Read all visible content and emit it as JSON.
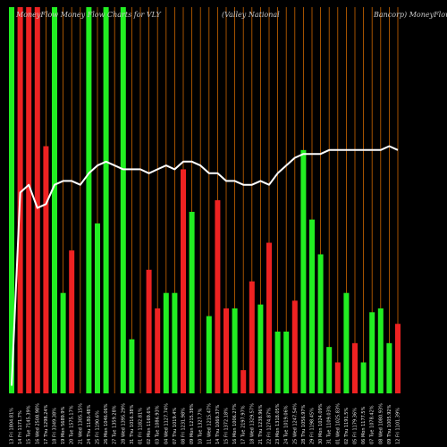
{
  "header": {
    "title_left": "MoneyFlow  Money Flow  Charts for VLY",
    "title_mid": "(Valley National",
    "title_right": "Bancorp) MoneyFlow"
  },
  "chart_data": {
    "type": "bar",
    "title": "MoneyFlow Money Flow Charts for VLY (Valley National Bancorp) MoneyFlow",
    "xlabel": "",
    "ylabel": "",
    "ylim": [
      0,
      100
    ],
    "grid": true,
    "grid_color": "#cc6600",
    "up_color": "#22ee22",
    "down_color": "#ee2222",
    "line_color": "#ffffff",
    "categories": [
      "13 Fri 1804.81%",
      "14 Fri 1171.7%",
      "15 Tue 7145.39%",
      "16 Wed 2508.98%",
      "17 Thu 1298.24%",
      "18 Fri 3349.38%",
      "19 Mon 5689.9%",
      "20 Tue 1575.17%",
      "21 Wed 1305.15%",
      "24 Thu 1180.48%",
      "25 Fri 1190.6%",
      "26 Mon 1046.06%",
      "27 Tue 1359.28%",
      "28 Wed 1395.29%",
      "31 Thu 1016.38%",
      "01 Fri 1182.81%",
      "02 Mon 1169.6%",
      "03 Tue 1086.93%",
      "04 Wed 1127.74%",
      "07 Thu 1019.4%",
      "08 Fri 1231.98%",
      "09 Mon 1215.38%",
      "10 Tue 1327.7%",
      "11 Wed 1215.47%",
      "14 Thu 1069.37%",
      "15 Fri 1372.18%",
      "16 Mon 1006.27%",
      "17 Tue 2197.97%",
      "18 Wed 1329.57%",
      "21 Thu 1238.96%",
      "22 Fri 1274.87%",
      "23 Mon 1318.05%",
      "24 Tue 1019.06%",
      "25 Wed 1247.54%",
      "28 Thu 1056.97%",
      "29 Fri 1198.45%",
      "30 Mon 1024.09%",
      "31 Tue 1109.03%",
      "01 Wed 1025.83%",
      "02 Thu 1191.5%",
      "05 Fri 1179.36%",
      "06 Mon 1177.5%",
      "07 Tue 1078.42%",
      "08 Wed 1080.93%",
      "09 Thu 1005.92%",
      "12 Fri 1101.39%"
    ],
    "series": [
      {
        "values": [
          100,
          100,
          100,
          100,
          64,
          100,
          26,
          37,
          0,
          100,
          44,
          100,
          0,
          100,
          14,
          0,
          32,
          22,
          26,
          26,
          58,
          47,
          0,
          20,
          50,
          22,
          22,
          6,
          29,
          23,
          39,
          16,
          16,
          24,
          63,
          45,
          36,
          12,
          8,
          26,
          13,
          8,
          21,
          22,
          13,
          18
        ],
        "direction": [
          "up",
          "down",
          "down",
          "down",
          "down",
          "up",
          "up",
          "down",
          "up",
          "up",
          "up",
          "up",
          "up",
          "up",
          "up",
          "up",
          "down",
          "down",
          "up",
          "up",
          "down",
          "up",
          "down",
          "up",
          "down",
          "down",
          "up",
          "down",
          "down",
          "up",
          "down",
          "up",
          "up",
          "down",
          "up",
          "up",
          "up",
          "up",
          "down",
          "up",
          "down",
          "up",
          "up",
          "up",
          "up",
          "down"
        ]
      },
      {
        "values": [
          2,
          52,
          54,
          48,
          49,
          54,
          55,
          55,
          54,
          57,
          59,
          60,
          59,
          58,
          58,
          58,
          57,
          58,
          59,
          58,
          60,
          60,
          59,
          57,
          57,
          55,
          55,
          54,
          54,
          55,
          54,
          57,
          59,
          61,
          62,
          62,
          62,
          63,
          63,
          63,
          63,
          63,
          63,
          63,
          64,
          63
        ]
      }
    ]
  }
}
